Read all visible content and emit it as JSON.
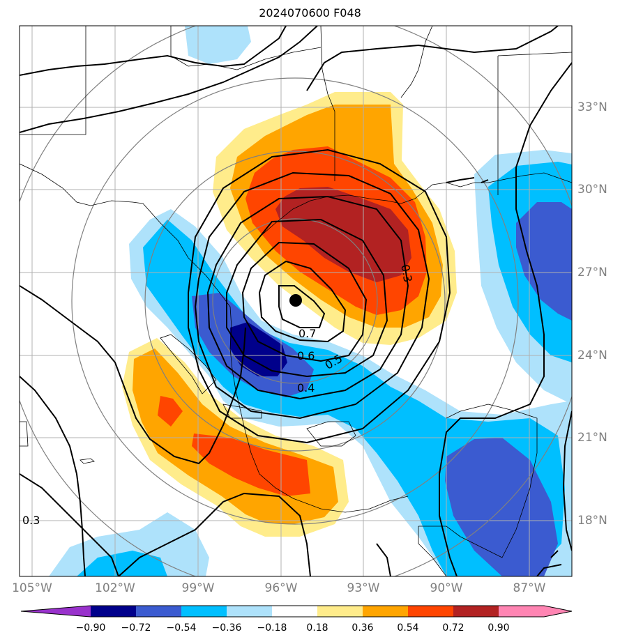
{
  "title": "2024070600 F048",
  "map": {
    "region": "Gulf of Mexico / Texas coast",
    "lon_labels": [
      "105°W",
      "102°W",
      "99°W",
      "96°W",
      "93°W",
      "90°W",
      "87°W"
    ],
    "lat_labels": [
      "33°N",
      "30°N",
      "27°N",
      "24°N",
      "21°N",
      "18°N"
    ],
    "contour_labels": [
      "0.3",
      "0.7",
      "0.6",
      "0.5",
      "0.4",
      "0.3"
    ],
    "storm_center_marker": "black-dot"
  },
  "colorbar": {
    "ticks": [
      "−0.90",
      "−0.72",
      "−0.54",
      "−0.36",
      "−0.18",
      "0.18",
      "0.36",
      "0.54",
      "0.72",
      "0.90"
    ],
    "colors": [
      "#9932cc",
      "#00008b",
      "#3b5bd0",
      "#00bfff",
      "#aee2fb",
      "#ffffff",
      "#ffec8b",
      "#ffa500",
      "#ff4500",
      "#b22222",
      "#ff85b3"
    ]
  }
}
